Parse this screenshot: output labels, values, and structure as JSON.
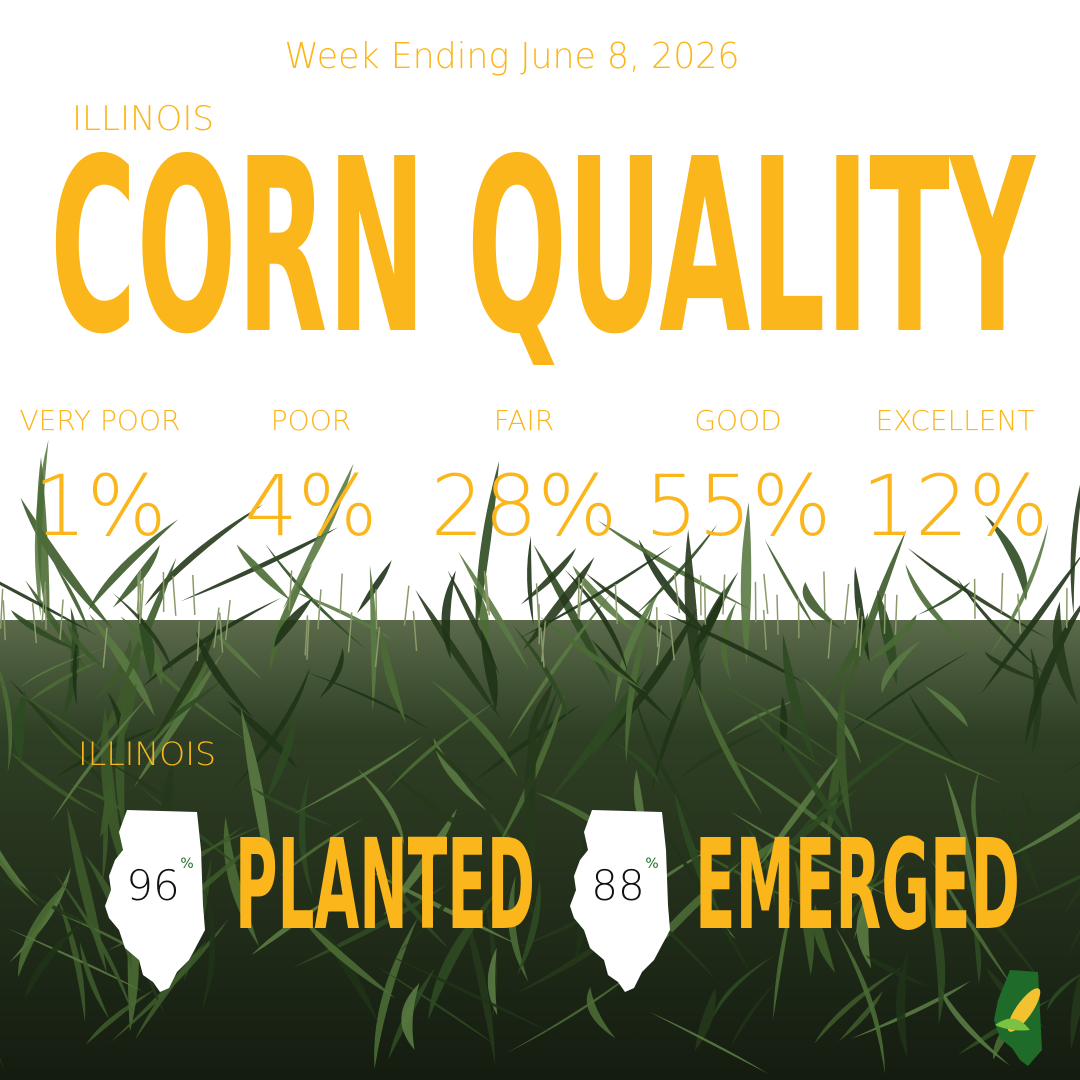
{
  "header": {
    "week": "Week Ending June 8, 2026",
    "state": "ILLINOIS",
    "title": "CORN QUALITY"
  },
  "ratings": [
    {
      "label": "VERY POOR",
      "value": "1%"
    },
    {
      "label": "POOR",
      "value": "4%"
    },
    {
      "label": "FAIR",
      "value": "28%"
    },
    {
      "label": "GOOD",
      "value": "55%"
    },
    {
      "label": "EXCELLENT",
      "value": "12%"
    }
  ],
  "progress": {
    "state": "ILLINOIS",
    "items": [
      {
        "value": "96",
        "unit": "%",
        "label": "PLANTED"
      },
      {
        "value": "88",
        "unit": "%",
        "label": "EMERGED"
      }
    ]
  }
}
